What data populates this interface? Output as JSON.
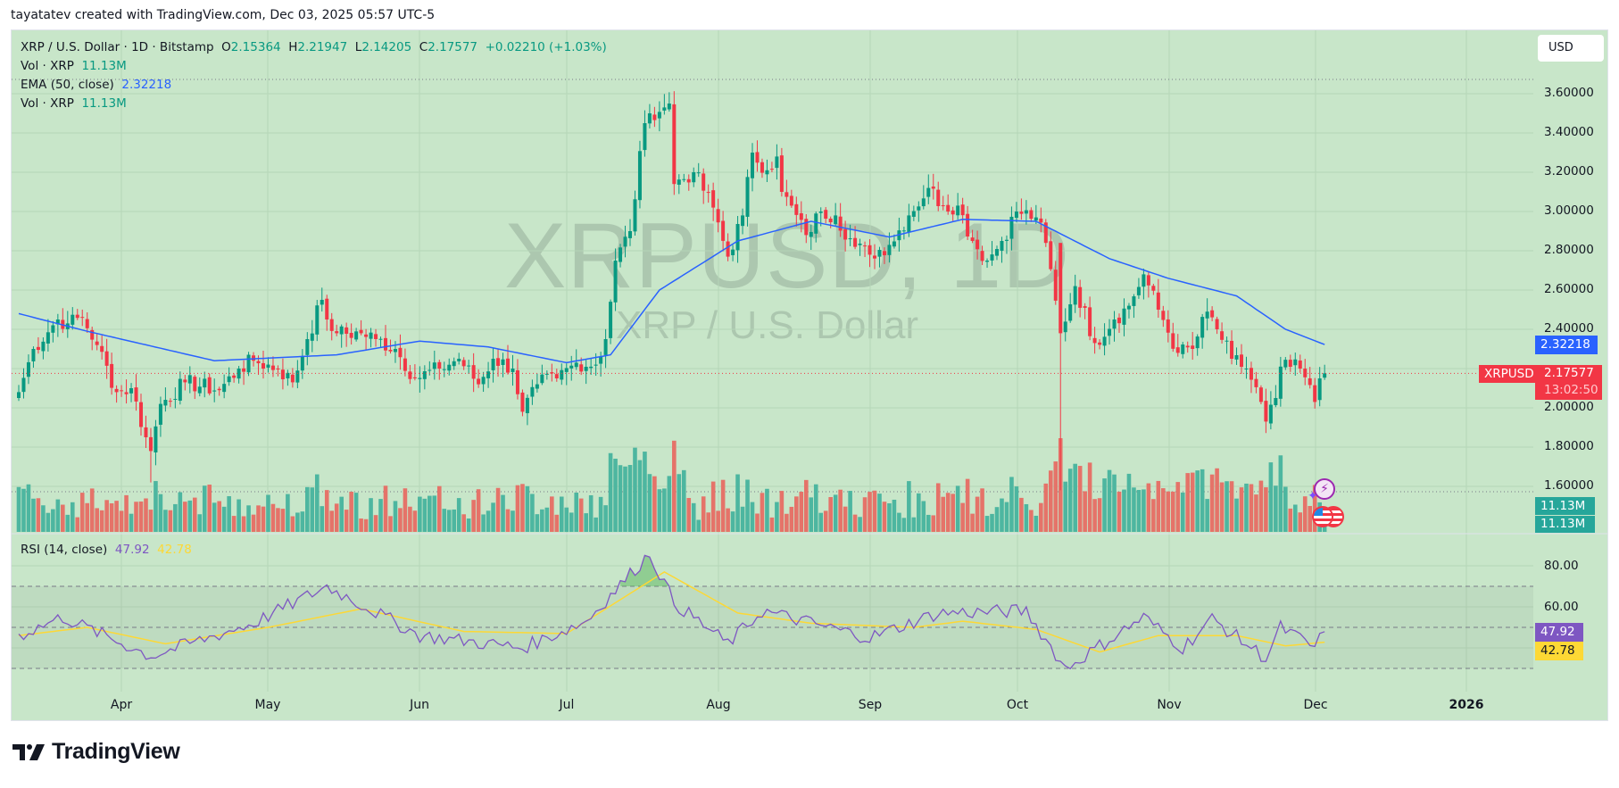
{
  "header": {
    "credit": "tayatatev created with TradingView.com, Dec 03, 2025 05:57 UTC-5"
  },
  "legend": {
    "symbol_line": "XRP / U.S. Dollar · 1D · Bitstamp",
    "open_label": "O",
    "open": "2.15364",
    "high_label": "H",
    "high": "2.21947",
    "low_label": "L",
    "low": "2.14205",
    "close_label": "C",
    "close": "2.17577",
    "change": "+0.02210 (+1.03%)",
    "vol1_label": "Vol · XRP",
    "vol1_value": "11.13M",
    "ema_label": "EMA (50, close)",
    "ema_value": "2.32218",
    "vol2_label": "Vol · XRP",
    "vol2_value": "11.13M",
    "rsi_label": "RSI (14, close)",
    "rsi_value": "47.92",
    "rsi_ma_value": "42.78"
  },
  "watermark": {
    "main": "XRPUSD, 1D",
    "sub": "XRP / U.S. Dollar"
  },
  "price_axis": {
    "currency_button": "USD",
    "ticks": [
      "3.60000",
      "3.40000",
      "3.20000",
      "3.00000",
      "2.80000",
      "2.60000",
      "2.40000",
      "2.20000",
      "2.00000",
      "1.80000",
      "1.60000"
    ],
    "ema_tag": "2.32218",
    "symbol_tag": "XRPUSD",
    "price_tag": "2.17577",
    "countdown": "13:02:50",
    "vol_tag1": "11.13M",
    "vol_tag2": "11.13M"
  },
  "rsi_axis": {
    "ticks": [
      "80.00",
      "60.00"
    ],
    "rsi_tag": "47.92",
    "rsi_ma_tag": "42.78"
  },
  "time_axis": {
    "labels": [
      "Apr",
      "May",
      "Jun",
      "Jul",
      "Aug",
      "Sep",
      "Oct",
      "Nov",
      "Dec",
      "2026"
    ]
  },
  "colors": {
    "background": "#c8e6c9",
    "up": "#089981",
    "down": "#f23645",
    "vol_up": "#4db6a0",
    "vol_down": "#e57369",
    "ema": "#2962ff",
    "rsi": "#7e57c2",
    "rsi_ma": "#fdd835"
  },
  "footer": {
    "brand": "TradingView"
  },
  "chart_data": [
    {
      "type": "candlestick",
      "title": "XRP / U.S. Dollar · 1D · Bitstamp",
      "x_range": [
        "2025-03-11",
        "2025-12-03"
      ],
      "ylim": [
        1.55,
        3.7
      ],
      "y_ticks": [
        1.6,
        1.8,
        2.0,
        2.2,
        2.4,
        2.6,
        2.8,
        3.0,
        3.2,
        3.4,
        3.6
      ],
      "x_ticks": [
        "Apr",
        "May",
        "Jun",
        "Jul",
        "Aug",
        "Sep",
        "Oct",
        "Nov",
        "Dec",
        "2026"
      ],
      "last_candle": {
        "open": 2.15364,
        "high": 2.21947,
        "low": 2.14205,
        "close": 2.17577,
        "change": 0.0221,
        "change_pct": 1.03
      },
      "close_keypoints": [
        {
          "date": "2025-03-11",
          "close": 2.08
        },
        {
          "date": "2025-03-14",
          "close": 2.3
        },
        {
          "date": "2025-03-19",
          "close": 2.45
        },
        {
          "date": "2025-03-21",
          "close": 2.43
        },
        {
          "date": "2025-03-24",
          "close": 2.46
        },
        {
          "date": "2025-03-27",
          "close": 2.32
        },
        {
          "date": "2025-03-31",
          "close": 2.08
        },
        {
          "date": "2025-04-03",
          "close": 2.1
        },
        {
          "date": "2025-04-06",
          "close": 1.85
        },
        {
          "date": "2025-04-07",
          "close": 1.78
        },
        {
          "date": "2025-04-09",
          "close": 2.02
        },
        {
          "date": "2025-04-14",
          "close": 2.13
        },
        {
          "date": "2025-04-21",
          "close": 2.09
        },
        {
          "date": "2025-04-25",
          "close": 2.2
        },
        {
          "date": "2025-04-28",
          "close": 2.24
        },
        {
          "date": "2025-05-03",
          "close": 2.2
        },
        {
          "date": "2025-05-06",
          "close": 2.13
        },
        {
          "date": "2025-05-09",
          "close": 2.35
        },
        {
          "date": "2025-05-12",
          "close": 2.55
        },
        {
          "date": "2025-05-13",
          "close": 2.45
        },
        {
          "date": "2025-05-15",
          "close": 2.38
        },
        {
          "date": "2025-05-20",
          "close": 2.38
        },
        {
          "date": "2025-05-23",
          "close": 2.35
        },
        {
          "date": "2025-05-27",
          "close": 2.3
        },
        {
          "date": "2025-05-31",
          "close": 2.15
        },
        {
          "date": "2025-06-05",
          "close": 2.2
        },
        {
          "date": "2025-06-09",
          "close": 2.25
        },
        {
          "date": "2025-06-13",
          "close": 2.12
        },
        {
          "date": "2025-06-16",
          "close": 2.25
        },
        {
          "date": "2025-06-20",
          "close": 2.2
        },
        {
          "date": "2025-06-22",
          "close": 1.98
        },
        {
          "date": "2025-06-25",
          "close": 2.12
        },
        {
          "date": "2025-06-29",
          "close": 2.15
        },
        {
          "date": "2025-07-03",
          "close": 2.23
        },
        {
          "date": "2025-07-07",
          "close": 2.22
        },
        {
          "date": "2025-07-09",
          "close": 2.35
        },
        {
          "date": "2025-07-11",
          "close": 2.75
        },
        {
          "date": "2025-07-14",
          "close": 2.9
        },
        {
          "date": "2025-07-17",
          "close": 3.45
        },
        {
          "date": "2025-07-18",
          "close": 3.5
        },
        {
          "date": "2025-07-21",
          "close": 3.53
        },
        {
          "date": "2025-07-22",
          "close": 3.55
        },
        {
          "date": "2025-07-23",
          "close": 3.14
        },
        {
          "date": "2025-07-27",
          "close": 3.2
        },
        {
          "date": "2025-07-31",
          "close": 3.02
        },
        {
          "date": "2025-08-03",
          "close": 2.77
        },
        {
          "date": "2025-08-06",
          "close": 2.98
        },
        {
          "date": "2025-08-08",
          "close": 3.3
        },
        {
          "date": "2025-08-11",
          "close": 3.21
        },
        {
          "date": "2025-08-13",
          "close": 3.28
        },
        {
          "date": "2025-08-14",
          "close": 3.1
        },
        {
          "date": "2025-08-19",
          "close": 2.88
        },
        {
          "date": "2025-08-22",
          "close": 3.0
        },
        {
          "date": "2025-08-25",
          "close": 2.98
        },
        {
          "date": "2025-08-29",
          "close": 2.82
        },
        {
          "date": "2025-09-01",
          "close": 2.78
        },
        {
          "date": "2025-09-05",
          "close": 2.83
        },
        {
          "date": "2025-09-09",
          "close": 2.98
        },
        {
          "date": "2025-09-13",
          "close": 3.12
        },
        {
          "date": "2025-09-16",
          "close": 3.03
        },
        {
          "date": "2025-09-19",
          "close": 3.03
        },
        {
          "date": "2025-09-22",
          "close": 2.85
        },
        {
          "date": "2025-09-25",
          "close": 2.75
        },
        {
          "date": "2025-09-28",
          "close": 2.85
        },
        {
          "date": "2025-10-01",
          "close": 3.0
        },
        {
          "date": "2025-10-05",
          "close": 2.97
        },
        {
          "date": "2025-10-07",
          "close": 2.84
        },
        {
          "date": "2025-10-10",
          "close": 2.38
        },
        {
          "date": "2025-10-13",
          "close": 2.62
        },
        {
          "date": "2025-10-17",
          "close": 2.33
        },
        {
          "date": "2025-10-21",
          "close": 2.45
        },
        {
          "date": "2025-10-24",
          "close": 2.52
        },
        {
          "date": "2025-10-27",
          "close": 2.68
        },
        {
          "date": "2025-10-30",
          "close": 2.5
        },
        {
          "date": "2025-11-03",
          "close": 2.28
        },
        {
          "date": "2025-11-06",
          "close": 2.3
        },
        {
          "date": "2025-11-09",
          "close": 2.49
        },
        {
          "date": "2025-11-11",
          "close": 2.4
        },
        {
          "date": "2025-11-14",
          "close": 2.25
        },
        {
          "date": "2025-11-17",
          "close": 2.2
        },
        {
          "date": "2025-11-20",
          "close": 2.03
        },
        {
          "date": "2025-11-21",
          "close": 1.93
        },
        {
          "date": "2025-11-23",
          "close": 2.05
        },
        {
          "date": "2025-11-24",
          "close": 2.21
        },
        {
          "date": "2025-11-28",
          "close": 2.2
        },
        {
          "date": "2025-12-01",
          "close": 2.03
        },
        {
          "date": "2025-12-02",
          "close": 2.15
        },
        {
          "date": "2025-12-03",
          "close": 2.17577
        }
      ],
      "ema50_keypoints": [
        {
          "date": "2025-03-11",
          "value": 2.48
        },
        {
          "date": "2025-03-25",
          "value": 2.39
        },
        {
          "date": "2025-04-20",
          "value": 2.24
        },
        {
          "date": "2025-05-15",
          "value": 2.27
        },
        {
          "date": "2025-06-01",
          "value": 2.34
        },
        {
          "date": "2025-06-15",
          "value": 2.31
        },
        {
          "date": "2025-07-01",
          "value": 2.23
        },
        {
          "date": "2025-07-10",
          "value": 2.27
        },
        {
          "date": "2025-07-20",
          "value": 2.6
        },
        {
          "date": "2025-08-05",
          "value": 2.85
        },
        {
          "date": "2025-08-20",
          "value": 2.95
        },
        {
          "date": "2025-09-05",
          "value": 2.87
        },
        {
          "date": "2025-09-20",
          "value": 2.96
        },
        {
          "date": "2025-10-05",
          "value": 2.95
        },
        {
          "date": "2025-10-20",
          "value": 2.76
        },
        {
          "date": "2025-11-01",
          "value": 2.66
        },
        {
          "date": "2025-11-15",
          "value": 2.57
        },
        {
          "date": "2025-11-25",
          "value": 2.4
        },
        {
          "date": "2025-12-03",
          "value": 2.32218
        }
      ],
      "volume": {
        "last": "11.13M",
        "label": "Vol · XRP"
      }
    },
    {
      "type": "line",
      "title": "RSI (14, close)",
      "ylim": [
        20,
        90
      ],
      "y_ticks": [
        60,
        80
      ],
      "bands": {
        "upper": 70,
        "middle": 50,
        "lower": 30
      },
      "series": [
        {
          "name": "RSI",
          "last": 47.92,
          "color": "#7e57c2",
          "keypoints": [
            {
              "date": "2025-03-11",
              "value": 46
            },
            {
              "date": "2025-03-20",
              "value": 55
            },
            {
              "date": "2025-04-07",
              "value": 36
            },
            {
              "date": "2025-04-28",
              "value": 52
            },
            {
              "date": "2025-05-13",
              "value": 70
            },
            {
              "date": "2025-06-01",
              "value": 46
            },
            {
              "date": "2025-06-22",
              "value": 40
            },
            {
              "date": "2025-07-05",
              "value": 53
            },
            {
              "date": "2025-07-18",
              "value": 86
            },
            {
              "date": "2025-07-23",
              "value": 62
            },
            {
              "date": "2025-08-03",
              "value": 42
            },
            {
              "date": "2025-08-10",
              "value": 58
            },
            {
              "date": "2025-09-01",
              "value": 45
            },
            {
              "date": "2025-09-15",
              "value": 57
            },
            {
              "date": "2025-10-03",
              "value": 58
            },
            {
              "date": "2025-10-11",
              "value": 30
            },
            {
              "date": "2025-10-27",
              "value": 55
            },
            {
              "date": "2025-11-04",
              "value": 40
            },
            {
              "date": "2025-11-10",
              "value": 54
            },
            {
              "date": "2025-11-21",
              "value": 35
            },
            {
              "date": "2025-11-24",
              "value": 50
            },
            {
              "date": "2025-12-01",
              "value": 40
            },
            {
              "date": "2025-12-03",
              "value": 47.92
            }
          ]
        },
        {
          "name": "RSI-based MA",
          "last": 42.78,
          "color": "#fdd835",
          "keypoints": [
            {
              "date": "2025-03-11",
              "value": 46
            },
            {
              "date": "2025-03-25",
              "value": 50
            },
            {
              "date": "2025-04-10",
              "value": 42
            },
            {
              "date": "2025-05-01",
              "value": 50
            },
            {
              "date": "2025-05-20",
              "value": 59
            },
            {
              "date": "2025-06-10",
              "value": 48
            },
            {
              "date": "2025-07-01",
              "value": 47
            },
            {
              "date": "2025-07-21",
              "value": 77
            },
            {
              "date": "2025-08-05",
              "value": 57
            },
            {
              "date": "2025-08-20",
              "value": 52
            },
            {
              "date": "2025-09-10",
              "value": 50
            },
            {
              "date": "2025-09-20",
              "value": 53
            },
            {
              "date": "2025-10-05",
              "value": 49
            },
            {
              "date": "2025-10-18",
              "value": 38
            },
            {
              "date": "2025-10-30",
              "value": 46
            },
            {
              "date": "2025-11-15",
              "value": 46
            },
            {
              "date": "2025-11-25",
              "value": 41
            },
            {
              "date": "2025-12-03",
              "value": 42.78
            }
          ]
        }
      ]
    }
  ]
}
